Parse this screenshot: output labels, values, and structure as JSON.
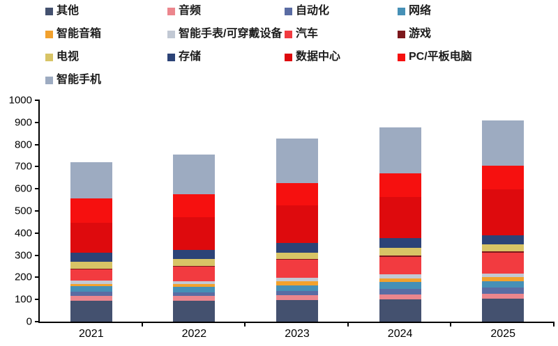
{
  "chart_data": {
    "type": "bar",
    "variant": "stacked-vertical",
    "title": "",
    "xlabel": "",
    "ylabel": "",
    "categories": [
      "2021",
      "2022",
      "2023",
      "2024",
      "2025"
    ],
    "series": [
      {
        "name": "其他",
        "color": "#44516f",
        "values": [
          95,
          95,
          97,
          100,
          105
        ]
      },
      {
        "name": "音频",
        "color": "#ec868d",
        "values": [
          20,
          20,
          21,
          22,
          21
        ]
      },
      {
        "name": "自动化",
        "color": "#5a6ca3",
        "values": [
          20,
          16,
          20,
          25,
          27
        ]
      },
      {
        "name": "网络",
        "color": "#4690b6",
        "values": [
          24,
          26,
          27,
          33,
          31
        ]
      },
      {
        "name": "智能音箱",
        "color": "#f2a12d",
        "values": [
          11,
          14,
          16,
          16,
          16
        ]
      },
      {
        "name": "智能手表/可穿戴设备",
        "color": "#c2c9d4",
        "values": [
          15,
          13,
          18,
          18,
          16
        ]
      },
      {
        "name": "汽车",
        "color": "#f23b40",
        "values": [
          52,
          66,
          82,
          78,
          94
        ]
      },
      {
        "name": "游戏",
        "color": "#7c181c",
        "values": [
          3,
          3,
          3,
          8,
          8
        ]
      },
      {
        "name": "电视",
        "color": "#d8c466",
        "values": [
          29,
          30,
          28,
          32,
          30
        ]
      },
      {
        "name": "存储",
        "color": "#2c4377",
        "values": [
          42,
          42,
          42,
          45,
          42
        ]
      },
      {
        "name": "数据中心",
        "color": "#de0a0d",
        "values": [
          135,
          146,
          172,
          185,
          208
        ]
      },
      {
        "name": "PC/平板电脑",
        "color": "#f6100f",
        "values": [
          110,
          105,
          100,
          107,
          105
        ]
      },
      {
        "name": "智能手机",
        "color": "#9dabc1",
        "values": [
          163,
          180,
          200,
          209,
          205
        ]
      }
    ],
    "totals": [
      719,
      756,
      826,
      878,
      908
    ],
    "ylim": [
      0,
      1000
    ],
    "ytick_step": 100,
    "yticklabels": [
      "0",
      "100",
      "200",
      "300",
      "400",
      "500",
      "600",
      "700",
      "800",
      "900",
      "1000"
    ],
    "legend_position": "top",
    "legend_columns": 4,
    "grid": false,
    "axis_color": "#000000",
    "background_color": "#ffffff"
  }
}
